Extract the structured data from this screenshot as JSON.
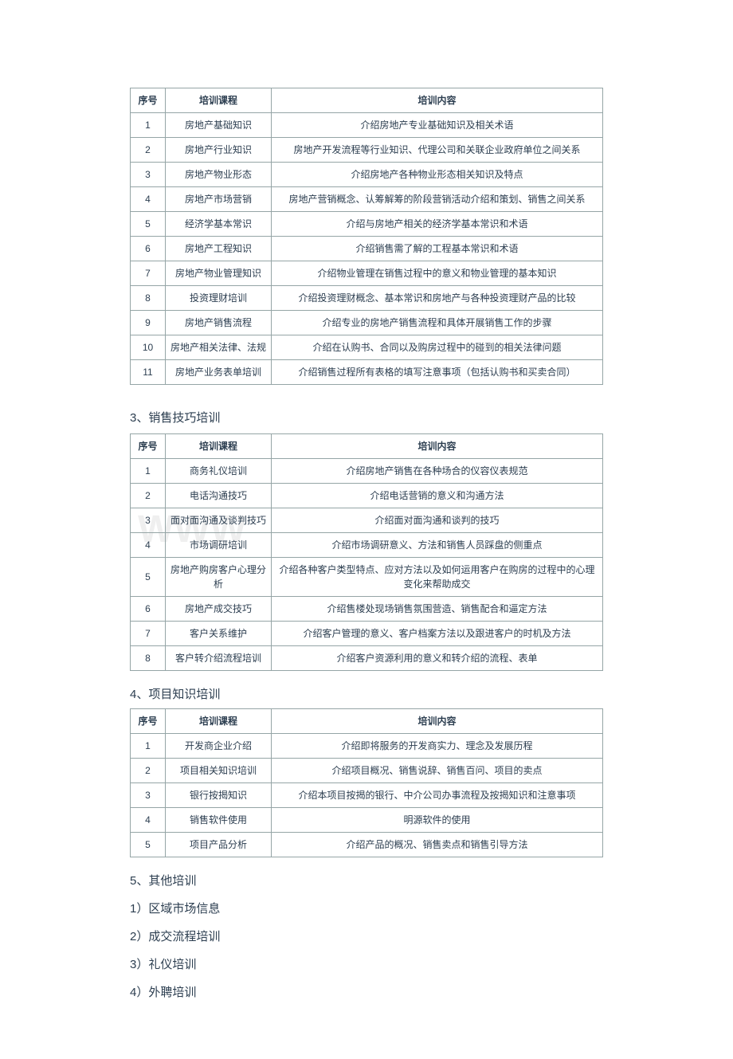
{
  "table1": {
    "headers": [
      "序号",
      "培训课程",
      "培训内容"
    ],
    "rows": [
      [
        "1",
        "房地产基础知识",
        "介绍房地产专业基础知识及相关术语"
      ],
      [
        "2",
        "房地产行业知识",
        "房地产开发流程等行业知识、代理公司和关联企业政府单位之间关系"
      ],
      [
        "3",
        "房地产物业形态",
        "介绍房地产各种物业形态相关知识及特点"
      ],
      [
        "4",
        "房地产市场营销",
        "房地产营销概念、认筹解筹的阶段营销活动介绍和策划、销售之间关系"
      ],
      [
        "5",
        "经济学基本常识",
        "介绍与房地产相关的经济学基本常识和术语"
      ],
      [
        "6",
        "房地产工程知识",
        "介绍销售需了解的工程基本常识和术语"
      ],
      [
        "7",
        "房地产物业管理知识",
        "介绍物业管理在销售过程中的意义和物业管理的基本知识"
      ],
      [
        "8",
        "投资理财培训",
        "介绍投资理财概念、基本常识和房地产与各种投资理财产品的比较"
      ],
      [
        "9",
        "房地产销售流程",
        "介绍专业的房地产销售流程和具体开展销售工作的步骤"
      ],
      [
        "10",
        "房地产相关法律、法规",
        "介绍在认购书、合同以及购房过程中的碰到的相关法律问题"
      ],
      [
        "11",
        "房地产业务表单培训",
        "介绍销售过程所有表格的填写注意事项（包括认购书和买卖合同）"
      ]
    ]
  },
  "section3": {
    "title": "3、销售技巧培训"
  },
  "table2": {
    "headers": [
      "序号",
      "培训课程",
      "培训内容"
    ],
    "rows": [
      [
        "1",
        "商务礼仪培训",
        "介绍房地产销售在各种场合的仪容仪表规范"
      ],
      [
        "2",
        "电话沟通技巧",
        "介绍电话营销的意义和沟通方法"
      ],
      [
        "3",
        "面对面沟通及谈判技巧",
        "介绍面对面沟通和谈判的技巧"
      ],
      [
        "4",
        "市场调研培训",
        "介绍市场调研意义、方法和销售人员踩盘的侧重点"
      ],
      [
        "5",
        "房地产购房客户心理分析",
        "介绍各种客户类型特点、应对方法以及如何运用客户在购房的过程中的心理变化来帮助成交"
      ],
      [
        "6",
        "房地产成交技巧",
        "介绍售楼处现场销售氛围营造、销售配合和逼定方法"
      ],
      [
        "7",
        "客户关系维护",
        "介绍客户管理的意义、客户档案方法以及跟进客户的时机及方法"
      ],
      [
        "8",
        "客户转介绍流程培训",
        "介绍客户资源利用的意义和转介绍的流程、表单"
      ]
    ]
  },
  "section4": {
    "title": "4、项目知识培训"
  },
  "table3": {
    "headers": [
      "序号",
      "培训课程",
      "培训内容"
    ],
    "rows": [
      [
        "1",
        "开发商企业介绍",
        "介绍即将服务的开发商实力、理念及发展历程"
      ],
      [
        "2",
        "项目相关知识培训",
        "介绍项目概况、销售说辞、销售百问、项目的卖点"
      ],
      [
        "3",
        "银行按揭知识",
        "介绍本项目按揭的银行、中介公司办事流程及按揭知识和注意事项"
      ],
      [
        "4",
        "销售软件使用",
        "明源软件的使用"
      ],
      [
        "5",
        "项目产品分析",
        "介绍产品的概况、销售卖点和销售引导方法"
      ]
    ]
  },
  "section5": {
    "title": "5、其他培训"
  },
  "list5": {
    "items": [
      "1）区域市场信息",
      "2）成交流程培训",
      "3）礼仪培训",
      "4）外聘培训"
    ]
  }
}
